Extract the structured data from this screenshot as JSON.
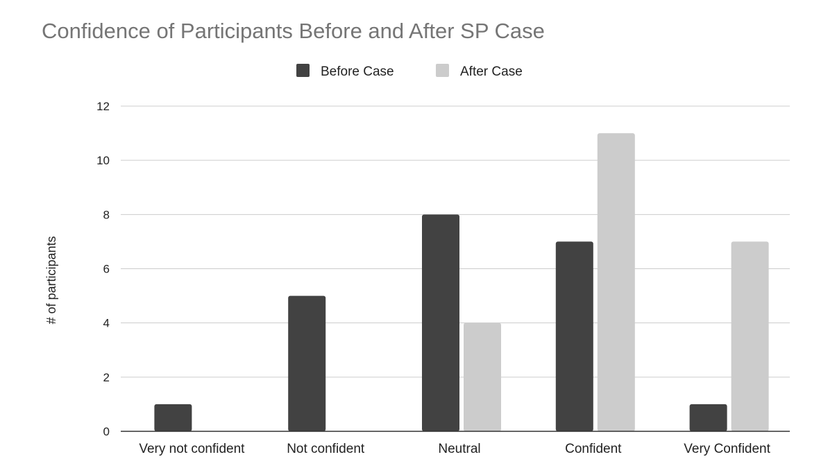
{
  "chart_data": {
    "type": "bar",
    "title": "Confidence of Participants Before and After SP Case",
    "xlabel": "",
    "ylabel": "# of participants",
    "categories": [
      "Very not confident",
      "Not confident",
      "Neutral",
      "Confident",
      "Very Confident"
    ],
    "series": [
      {
        "name": "Before Case",
        "values": [
          1,
          5,
          8,
          7,
          1
        ],
        "color": "#424242"
      },
      {
        "name": "After Case",
        "values": [
          0,
          0,
          4,
          11,
          7
        ],
        "color": "#cccccc"
      }
    ],
    "ylim": [
      0,
      12
    ],
    "yticks": [
      0,
      2,
      4,
      6,
      8,
      10,
      12
    ],
    "grid": true,
    "legend_position": "top"
  }
}
